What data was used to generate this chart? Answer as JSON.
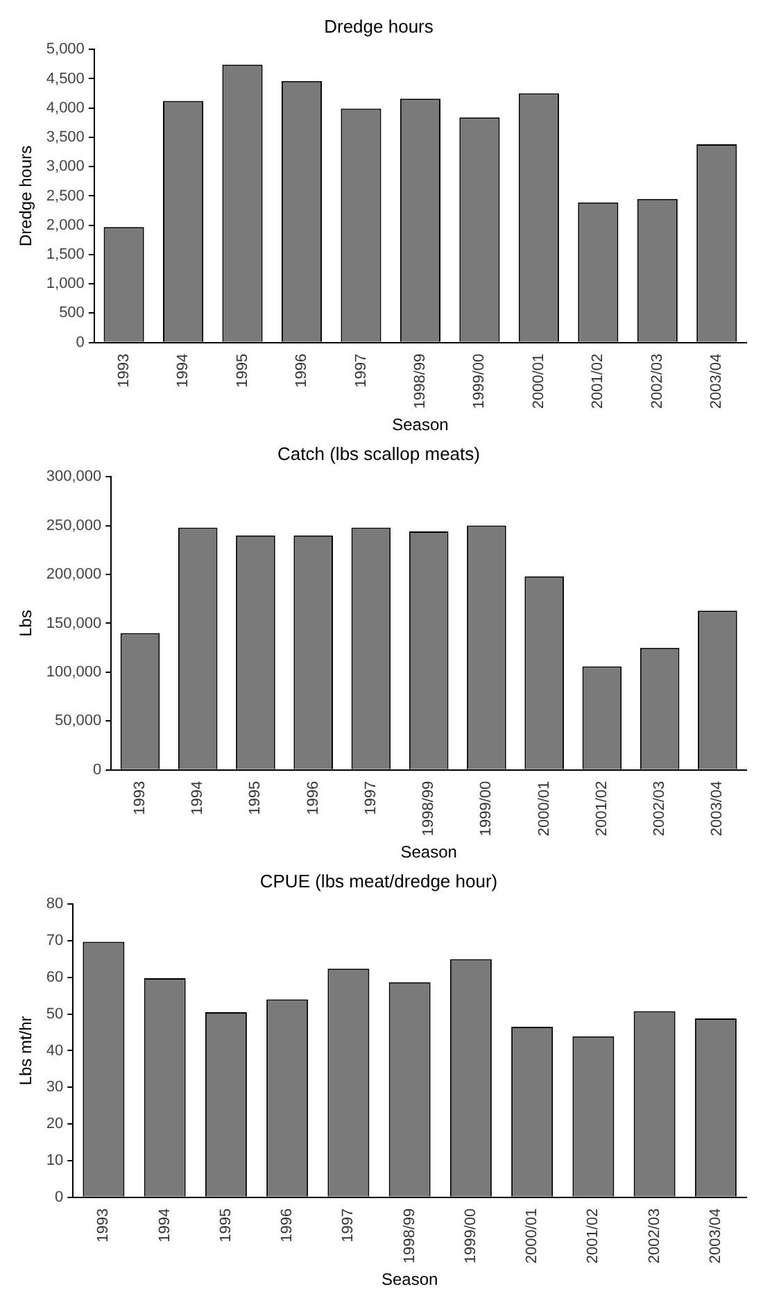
{
  "chart_data": [
    {
      "type": "bar",
      "title": "Dredge hours",
      "xlabel": "Season",
      "ylabel": "Dredge hours",
      "categories": [
        "1993",
        "1994",
        "1995",
        "1996",
        "1997",
        "1998/99",
        "1999/00",
        "2000/01",
        "2001/02",
        "2002/03",
        "2003/04"
      ],
      "values": [
        1970,
        4120,
        4740,
        4460,
        3990,
        4160,
        3840,
        4250,
        2390,
        2450,
        3380
      ],
      "color": "#7a7a7a",
      "ylim": [
        0,
        5000
      ],
      "yticks": [
        0,
        500,
        {
          "value": 1000,
          "label": "1,000"
        },
        {
          "value": 1500,
          "label": "1,500"
        },
        {
          "value": 2000,
          "label": "2,000"
        },
        {
          "value": 2500,
          "label": "2,500"
        },
        {
          "value": 3000,
          "label": "3,000"
        },
        {
          "value": 3500,
          "label": "3,500"
        },
        {
          "value": 4000,
          "label": "4,000"
        },
        {
          "value": 4500,
          "label": "4,500"
        },
        {
          "value": 5000,
          "label": "5,000"
        }
      ],
      "grid": false,
      "legend": false
    },
    {
      "type": "bar",
      "title": "Catch (lbs scallop meats)",
      "xlabel": "Season",
      "ylabel": "Lbs",
      "categories": [
        "1993",
        "1994",
        "1995",
        "1996",
        "1997",
        "1998/99",
        "1999/00",
        "2000/01",
        "2001/02",
        "2002/03",
        "2003/04"
      ],
      "values": [
        140000,
        248000,
        240000,
        240000,
        248000,
        244000,
        250000,
        198000,
        106000,
        125000,
        163000
      ],
      "color": "#7a7a7a",
      "ylim": [
        0,
        300000
      ],
      "yticks": [
        0,
        {
          "value": 50000,
          "label": "50,000"
        },
        {
          "value": 100000,
          "label": "100,000"
        },
        {
          "value": 150000,
          "label": "150,000"
        },
        {
          "value": 200000,
          "label": "200,000"
        },
        {
          "value": 250000,
          "label": "250,000"
        },
        {
          "value": 300000,
          "label": "300,000"
        }
      ],
      "grid": false,
      "legend": false
    },
    {
      "type": "bar",
      "title": "CPUE (lbs meat/dredge hour)",
      "xlabel": "Season",
      "ylabel": "Lbs mt/hr",
      "categories": [
        "1993",
        "1994",
        "1995",
        "1996",
        "1997",
        "1998/99",
        "1999/00",
        "2000/01",
        "2001/02",
        "2002/03",
        "2003/04"
      ],
      "values": [
        69.7,
        59.8,
        50.5,
        54,
        62.4,
        58.7,
        65,
        46.5,
        43.9,
        50.8,
        48.8
      ],
      "color": "#7a7a7a",
      "ylim": [
        0,
        80
      ],
      "yticks": [
        0,
        10,
        20,
        30,
        40,
        50,
        60,
        70,
        80
      ],
      "grid": false,
      "legend": false
    }
  ]
}
